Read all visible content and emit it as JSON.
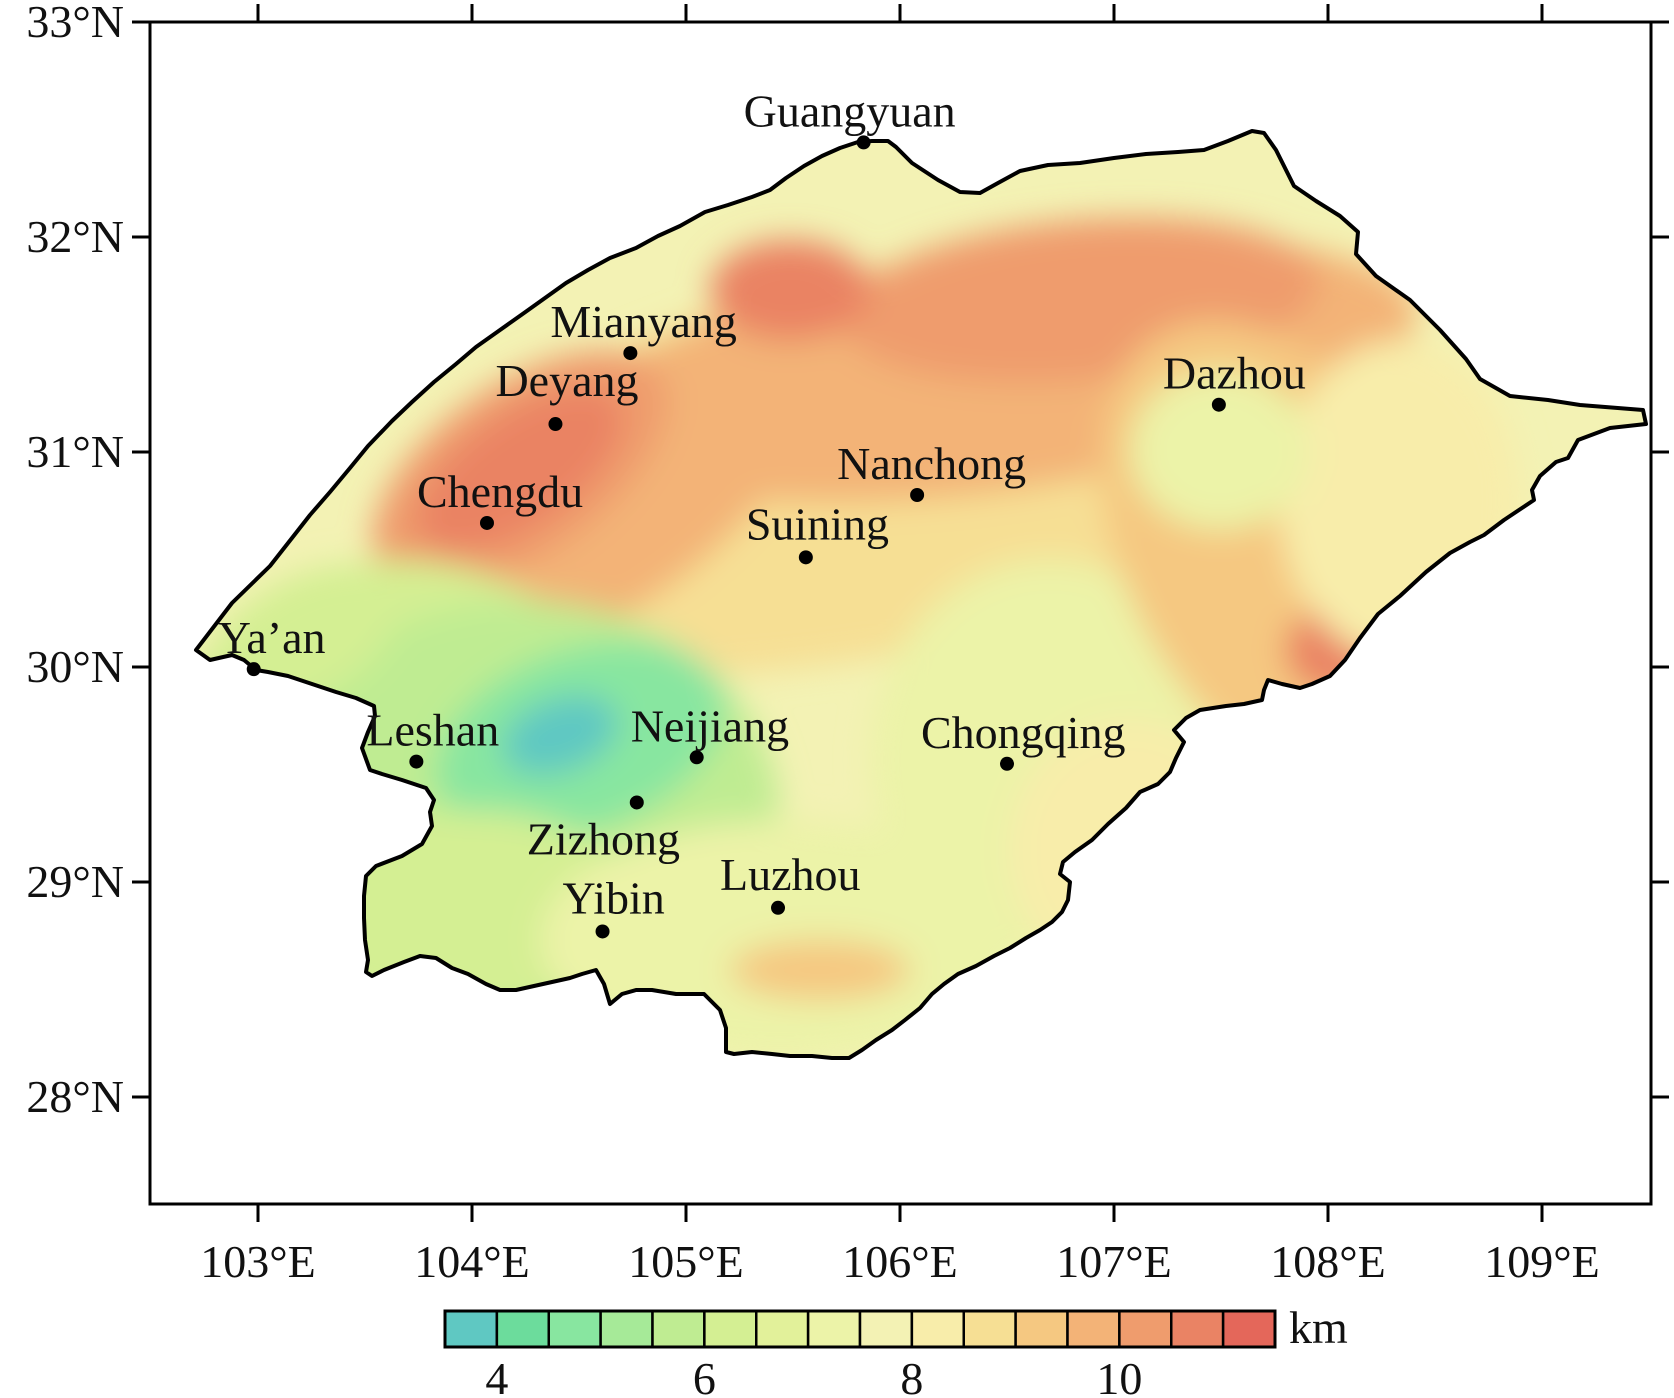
{
  "map": {
    "lat_labels": [
      "33°N",
      "32°N",
      "31°N",
      "30°N",
      "29°N",
      "28°N"
    ],
    "lon_labels": [
      "103°E",
      "104°E",
      "105°E",
      "106°E",
      "107°E",
      "108°E",
      "109°E"
    ],
    "cities": [
      {
        "name": "Guangyuan",
        "lon": 105.83,
        "lat": 32.44
      },
      {
        "name": "Mianyang",
        "lon": 104.74,
        "lat": 31.46
      },
      {
        "name": "Deyang",
        "lon": 104.39,
        "lat": 31.13
      },
      {
        "name": "Dazhou",
        "lon": 107.49,
        "lat": 31.22
      },
      {
        "name": "Chengdu",
        "lon": 104.07,
        "lat": 30.67
      },
      {
        "name": "Nanchong",
        "lon": 106.08,
        "lat": 30.8
      },
      {
        "name": "Suining",
        "lon": 105.56,
        "lat": 30.51
      },
      {
        "name": "Ya’an",
        "lon": 102.98,
        "lat": 29.99
      },
      {
        "name": "Leshan",
        "lon": 103.74,
        "lat": 29.56
      },
      {
        "name": "Neijiang",
        "lon": 105.05,
        "lat": 29.58
      },
      {
        "name": "Chongqing",
        "lon": 106.5,
        "lat": 29.55
      },
      {
        "name": "Zizhong",
        "lon": 104.77,
        "lat": 29.37
      },
      {
        "name": "Luzhou",
        "lon": 105.43,
        "lat": 28.88
      },
      {
        "name": "Yibin",
        "lon": 104.61,
        "lat": 28.77
      }
    ]
  },
  "colorbar": {
    "unit": "km",
    "tick_labels": [
      "4",
      "6",
      "8",
      "10"
    ],
    "levels": [
      3.5,
      4,
      4.5,
      5,
      5.5,
      6,
      6.5,
      7,
      7.5,
      8,
      8.5,
      9,
      9.5,
      10,
      10.5,
      11,
      11.5
    ],
    "colors": [
      "#5fc8c2",
      "#6cdc9c",
      "#88e6a0",
      "#a6ea98",
      "#bfec92",
      "#d4ef93",
      "#e2f19a",
      "#ecf3a8",
      "#f3f2b4",
      "#f8edaa",
      "#f6df94",
      "#f5c881",
      "#f3b377",
      "#ef9c6d",
      "#ea8364",
      "#e4675a"
    ]
  }
}
